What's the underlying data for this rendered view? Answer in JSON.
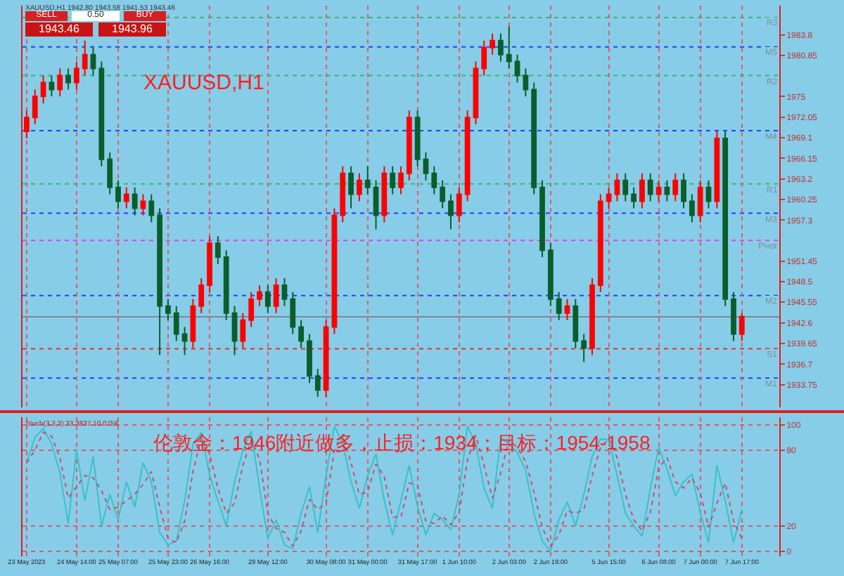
{
  "chart_data": [
    {
      "type": "candlestick",
      "title": "XAUUSD,H1",
      "annotations": [
        "XAUUSD,H1 1942.80 1943.58 1941.53 1943.46",
        "SELL",
        "BUY",
        "0.50",
        "1943.46",
        "1943.96"
      ],
      "categories": [
        null,
        null,
        null,
        null,
        null,
        null,
        null,
        null,
        null,
        null,
        null,
        null,
        null,
        null,
        null,
        null,
        null,
        null,
        null,
        null,
        null,
        null,
        null,
        null,
        null,
        null,
        null,
        null,
        null,
        null,
        null,
        null,
        null,
        null,
        null,
        null,
        null,
        null,
        null,
        null,
        null,
        null,
        null,
        null,
        null,
        null,
        null,
        null,
        null,
        null,
        null,
        null,
        null,
        null,
        null,
        null,
        null,
        null,
        null,
        null,
        null,
        null,
        null,
        null,
        null,
        null,
        null,
        null,
        null,
        null,
        null,
        null,
        null,
        null,
        null,
        null,
        null,
        null,
        null,
        null,
        null,
        null,
        null,
        null,
        null,
        null,
        null,
        null,
        null,
        null,
        null
      ],
      "ohlc": [
        [
          1970,
          1973,
          1969,
          1972
        ],
        [
          1972,
          1976,
          1971,
          1975
        ],
        [
          1975,
          1978,
          1974,
          1977
        ],
        [
          1977,
          1978,
          1975,
          1976
        ],
        [
          1976,
          1979,
          1975,
          1978
        ],
        [
          1978,
          1979,
          1976,
          1977
        ],
        [
          1977,
          1980,
          1976,
          1979
        ],
        [
          1979,
          1983,
          1978,
          1981
        ],
        [
          1981,
          1982,
          1978,
          1979
        ],
        [
          1979,
          1980,
          1965,
          1966
        ],
        [
          1966,
          1967,
          1961,
          1962
        ],
        [
          1962,
          1963,
          1959,
          1960
        ],
        [
          1960,
          1962,
          1959,
          1961
        ],
        [
          1961,
          1962,
          1958,
          1959
        ],
        [
          1959,
          1961,
          1958,
          1960
        ],
        [
          1960,
          1961,
          1957,
          1958
        ],
        [
          1958,
          1959,
          1938,
          1945
        ],
        [
          1945,
          1946,
          1943,
          1944
        ],
        [
          1944,
          1945,
          1940,
          1941
        ],
        [
          1941,
          1942,
          1938,
          1940
        ],
        [
          1940,
          1946,
          1939,
          1945
        ],
        [
          1945,
          1949,
          1944,
          1948
        ],
        [
          1948,
          1955,
          1947,
          1954
        ],
        [
          1954,
          1955,
          1951,
          1952
        ],
        [
          1952,
          1953,
          1943,
          1944
        ],
        [
          1944,
          1945,
          1938,
          1940
        ],
        [
          1940,
          1944,
          1939,
          1943
        ],
        [
          1943,
          1947,
          1942,
          1946
        ],
        [
          1946,
          1948,
          1945,
          1947
        ],
        [
          1947,
          1948,
          1944,
          1945
        ],
        [
          1945,
          1949,
          1944,
          1948
        ],
        [
          1948,
          1949,
          1945,
          1946
        ],
        [
          1946,
          1947,
          1941,
          1942
        ],
        [
          1942,
          1943,
          1939,
          1940
        ],
        [
          1940,
          1941,
          1934,
          1935
        ],
        [
          1935,
          1936,
          1932,
          1933
        ],
        [
          1933,
          1943,
          1932,
          1942
        ],
        [
          1942,
          1959,
          1941,
          1958
        ],
        [
          1958,
          1965,
          1957,
          1964
        ],
        [
          1964,
          1965,
          1959,
          1961
        ],
        [
          1961,
          1964,
          1960,
          1963
        ],
        [
          1963,
          1965,
          1961,
          1962
        ],
        [
          1962,
          1963,
          1956,
          1958
        ],
        [
          1958,
          1965,
          1957,
          1964
        ],
        [
          1964,
          1965,
          1961,
          1962
        ],
        [
          1962,
          1965,
          1961,
          1964
        ],
        [
          1964,
          1973,
          1963,
          1972
        ],
        [
          1972,
          1973,
          1965,
          1966
        ],
        [
          1966,
          1967,
          1963,
          1964
        ],
        [
          1964,
          1965,
          1961,
          1962
        ],
        [
          1962,
          1963,
          1959,
          1960
        ],
        [
          1960,
          1961,
          1956,
          1958
        ],
        [
          1958,
          1962,
          1957,
          1961
        ],
        [
          1961,
          1973,
          1960,
          1972
        ],
        [
          1972,
          1980,
          1971,
          1979
        ],
        [
          1979,
          1983,
          1978,
          1982
        ],
        [
          1982,
          1984,
          1981,
          1983
        ],
        [
          1983,
          1984,
          1980,
          1981
        ],
        [
          1981,
          1985,
          1979,
          1980
        ],
        [
          1980,
          1981,
          1977,
          1978
        ],
        [
          1978,
          1979,
          1975,
          1976
        ],
        [
          1976,
          1977,
          1961,
          1962
        ],
        [
          1962,
          1963,
          1952,
          1953
        ],
        [
          1953,
          1954,
          1945,
          1946
        ],
        [
          1946,
          1947,
          1943,
          1944
        ],
        [
          1944,
          1946,
          1943,
          1945
        ],
        [
          1945,
          1946,
          1939,
          1940
        ],
        [
          1940,
          1941,
          1937,
          1939
        ],
        [
          1939,
          1949,
          1938,
          1948
        ],
        [
          1948,
          1961,
          1947,
          1960
        ],
        [
          1960,
          1962,
          1959,
          1961
        ],
        [
          1961,
          1964,
          1960,
          1963
        ],
        [
          1963,
          1964,
          1960,
          1961
        ],
        [
          1961,
          1962,
          1959,
          1960
        ],
        [
          1960,
          1964,
          1959,
          1963
        ],
        [
          1963,
          1964,
          1960,
          1961
        ],
        [
          1961,
          1963,
          1960,
          1962
        ],
        [
          1962,
          1963,
          1960,
          1961
        ],
        [
          1961,
          1964,
          1960,
          1963
        ],
        [
          1963,
          1964,
          1959,
          1960
        ],
        [
          1960,
          1961,
          1957,
          1958
        ],
        [
          1958,
          1963,
          1957,
          1962
        ],
        [
          1962,
          1963,
          1959,
          1960
        ],
        [
          1960,
          1970,
          1959,
          1969
        ],
        [
          1969,
          1970,
          1945,
          1946
        ],
        [
          1946,
          1947,
          1940,
          1941
        ],
        [
          1941,
          1944,
          1940,
          1943.5
        ],
        null,
        null,
        null,
        null
      ],
      "colors": [
        "#ff0000",
        "#ff0000",
        "#ff0000",
        "#0b5e2c",
        "#ff0000",
        "#0b5e2c",
        "#ff0000",
        "#ff0000",
        "#0b5e2c",
        "#0b5e2c",
        "#0b5e2c",
        "#0b5e2c",
        "#ff0000",
        "#0b5e2c",
        "#ff0000",
        "#0b5e2c",
        "#0b5e2c",
        "#0b5e2c",
        "#0b5e2c",
        "#0b5e2c",
        "#ff0000",
        "#ff0000",
        "#ff0000",
        "#0b5e2c",
        "#0b5e2c",
        "#0b5e2c",
        "#ff0000",
        "#ff0000",
        "#ff0000",
        "#0b5e2c",
        "#ff0000",
        "#0b5e2c",
        "#0b5e2c",
        "#0b5e2c",
        "#0b5e2c",
        "#0b5e2c",
        "#ff0000",
        "#ff0000",
        "#ff0000",
        "#0b5e2c",
        "#ff0000",
        "#0b5e2c",
        "#0b5e2c",
        "#ff0000",
        "#0b5e2c",
        "#ff0000",
        "#ff0000",
        "#0b5e2c",
        "#0b5e2c",
        "#0b5e2c",
        "#0b5e2c",
        "#0b5e2c",
        "#ff0000",
        "#ff0000",
        "#ff0000",
        "#ff0000",
        "#ff0000",
        "#0b5e2c",
        "#0b5e2c",
        "#0b5e2c",
        "#0b5e2c",
        "#0b5e2c",
        "#0b5e2c",
        "#0b5e2c",
        "#0b5e2c",
        "#ff0000",
        "#0b5e2c",
        "#0b5e2c",
        "#ff0000",
        "#ff0000",
        "#ff0000",
        "#ff0000",
        "#0b5e2c",
        "#0b5e2c",
        "#ff0000",
        "#0b5e2c",
        "#ff0000",
        "#0b5e2c",
        "#ff0000",
        "#0b5e2c",
        "#0b5e2c",
        "#ff0000",
        "#0b5e2c",
        "#ff0000",
        "#0b5e2c",
        "#0b5e2c",
        "#ff0000",
        null,
        null,
        null,
        null
      ],
      "ylim": [
        1930.5,
        1988
      ],
      "yticks": [
        1933.75,
        1936.7,
        1939.65,
        1942.6,
        1945.55,
        1948.5,
        1951.45,
        1957.3,
        1960.25,
        1963.2,
        1966.15,
        1969.1,
        1972.05,
        1975.0,
        1980.85,
        1983.8
      ],
      "ref_lines": [
        {
          "axis": "y",
          "value": 1986.3,
          "label": "R3",
          "color": "#3cb371",
          "line_style": "dotted"
        },
        {
          "axis": "y",
          "value": 1982.1,
          "label": "M5",
          "color": "#2040ff",
          "line_style": "dotted"
        },
        {
          "axis": "y",
          "value": 1978.0,
          "label": "R2",
          "color": "#3cb371",
          "line_style": "dotted"
        },
        {
          "axis": "y",
          "value": 1970.1,
          "label": "M4",
          "color": "#2040ff",
          "line_style": "dotted"
        },
        {
          "axis": "y",
          "value": 1962.5,
          "label": "R1",
          "color": "#3cb371",
          "line_style": "dotted"
        },
        {
          "axis": "y",
          "value": 1958.3,
          "label": "M3",
          "color": "#2040ff",
          "line_style": "dotted"
        },
        {
          "axis": "y",
          "value": 1954.4,
          "label": "Pivot",
          "color": "#e040e0",
          "line_style": "dotted"
        },
        {
          "axis": "y",
          "value": 1946.5,
          "label": "M2",
          "color": "#2040ff",
          "line_style": "dotted"
        },
        {
          "axis": "y",
          "value": 1943.46,
          "label": null,
          "color": "#7a8a96",
          "line_style": "solid"
        },
        {
          "axis": "y",
          "value": 1938.9,
          "label": "S1",
          "color": "#e03030",
          "line_style": "dotted"
        },
        {
          "axis": "y",
          "value": 1934.7,
          "label": "M1",
          "color": "#2040ff",
          "line_style": "dotted"
        }
      ],
      "grid": "x",
      "tick_labels": "y"
    },
    {
      "type": "line",
      "annotations": [
        "Stoch(3,3,3) 33.3837 10.0758",
        "伦敦金：1946附近做多，止损：1934；目标：1954-1958"
      ],
      "categories": [
        "23 May 2023",
        null,
        null,
        null,
        null,
        null,
        "24 May 14:00",
        null,
        null,
        null,
        null,
        "25 May 07:00",
        null,
        null,
        null,
        null,
        null,
        "25 May 23:00",
        null,
        null,
        null,
        null,
        "26 May 16:00",
        null,
        null,
        null,
        null,
        null,
        null,
        "29 May 12:00",
        null,
        null,
        null,
        null,
        null,
        null,
        "30 May 08:00",
        null,
        null,
        null,
        null,
        "31 May 00:00",
        null,
        null,
        null,
        null,
        null,
        "31 May 17:00",
        null,
        null,
        null,
        null,
        "1 Jun 10:00",
        null,
        null,
        null,
        null,
        null,
        "2 Jun 03:00",
        null,
        null,
        null,
        null,
        "2 Jun 19:00",
        null,
        null,
        null,
        null,
        null,
        null,
        "5 Jun 15:00",
        null,
        null,
        null,
        null,
        null,
        "6 Jun 08:00",
        null,
        null,
        null,
        null,
        "7 Jun 00:00",
        null,
        null,
        null,
        null,
        "7 Jun 17:00",
        null,
        null,
        null,
        null
      ],
      "series": [
        {
          "color": "#3cc0c8",
          "line_style": "solid",
          "values": [
            70,
            90,
            97,
            85,
            62,
            22,
            80,
            40,
            75,
            20,
            45,
            25,
            55,
            35,
            70,
            55,
            15,
            5,
            8,
            40,
            85,
            94,
            60,
            40,
            20,
            55,
            80,
            95,
            50,
            10,
            25,
            5,
            2,
            30,
            51,
            15,
            60,
            99,
            85,
            55,
            34,
            60,
            77,
            40,
            13,
            40,
            68,
            35,
            13,
            30,
            25,
            17,
            45,
            99,
            85,
            50,
            34,
            90,
            85,
            78,
            64,
            30,
            8,
            0,
            25,
            39,
            20,
            45,
            75,
            89,
            88,
            60,
            30,
            20,
            12,
            50,
            82,
            65,
            44,
            55,
            61,
            30,
            7,
            68,
            40,
            7,
            33,
            null,
            null,
            null,
            null
          ]
        },
        {
          "color": "#c8506e",
          "line_style": "dotted",
          "values": [
            70,
            80,
            94,
            91,
            74,
            42,
            51,
            60,
            58,
            48,
            33,
            35,
            40,
            45,
            53,
            63,
            35,
            10,
            7,
            24,
            63,
            90,
            77,
            50,
            30,
            38,
            68,
            88,
            73,
            30,
            18,
            15,
            4,
            16,
            41,
            33,
            38,
            80,
            92,
            70,
            45,
            47,
            69,
            59,
            27,
            27,
            54,
            52,
            24,
            22,
            28,
            21,
            31,
            72,
            92,
            68,
            42,
            62,
            88,
            82,
            71,
            47,
            19,
            4,
            13,
            32,
            30,
            33,
            60,
            82,
            89,
            74,
            45,
            25,
            16,
            31,
            66,
            74,
            55,
            50,
            58,
            46,
            19,
            38,
            54,
            24,
            10,
            null,
            null,
            null,
            null
          ]
        }
      ],
      "ylim": [
        -4,
        106
      ],
      "yticks": [
        0,
        20,
        80,
        100
      ],
      "grid": true,
      "marker": "none"
    }
  ]
}
